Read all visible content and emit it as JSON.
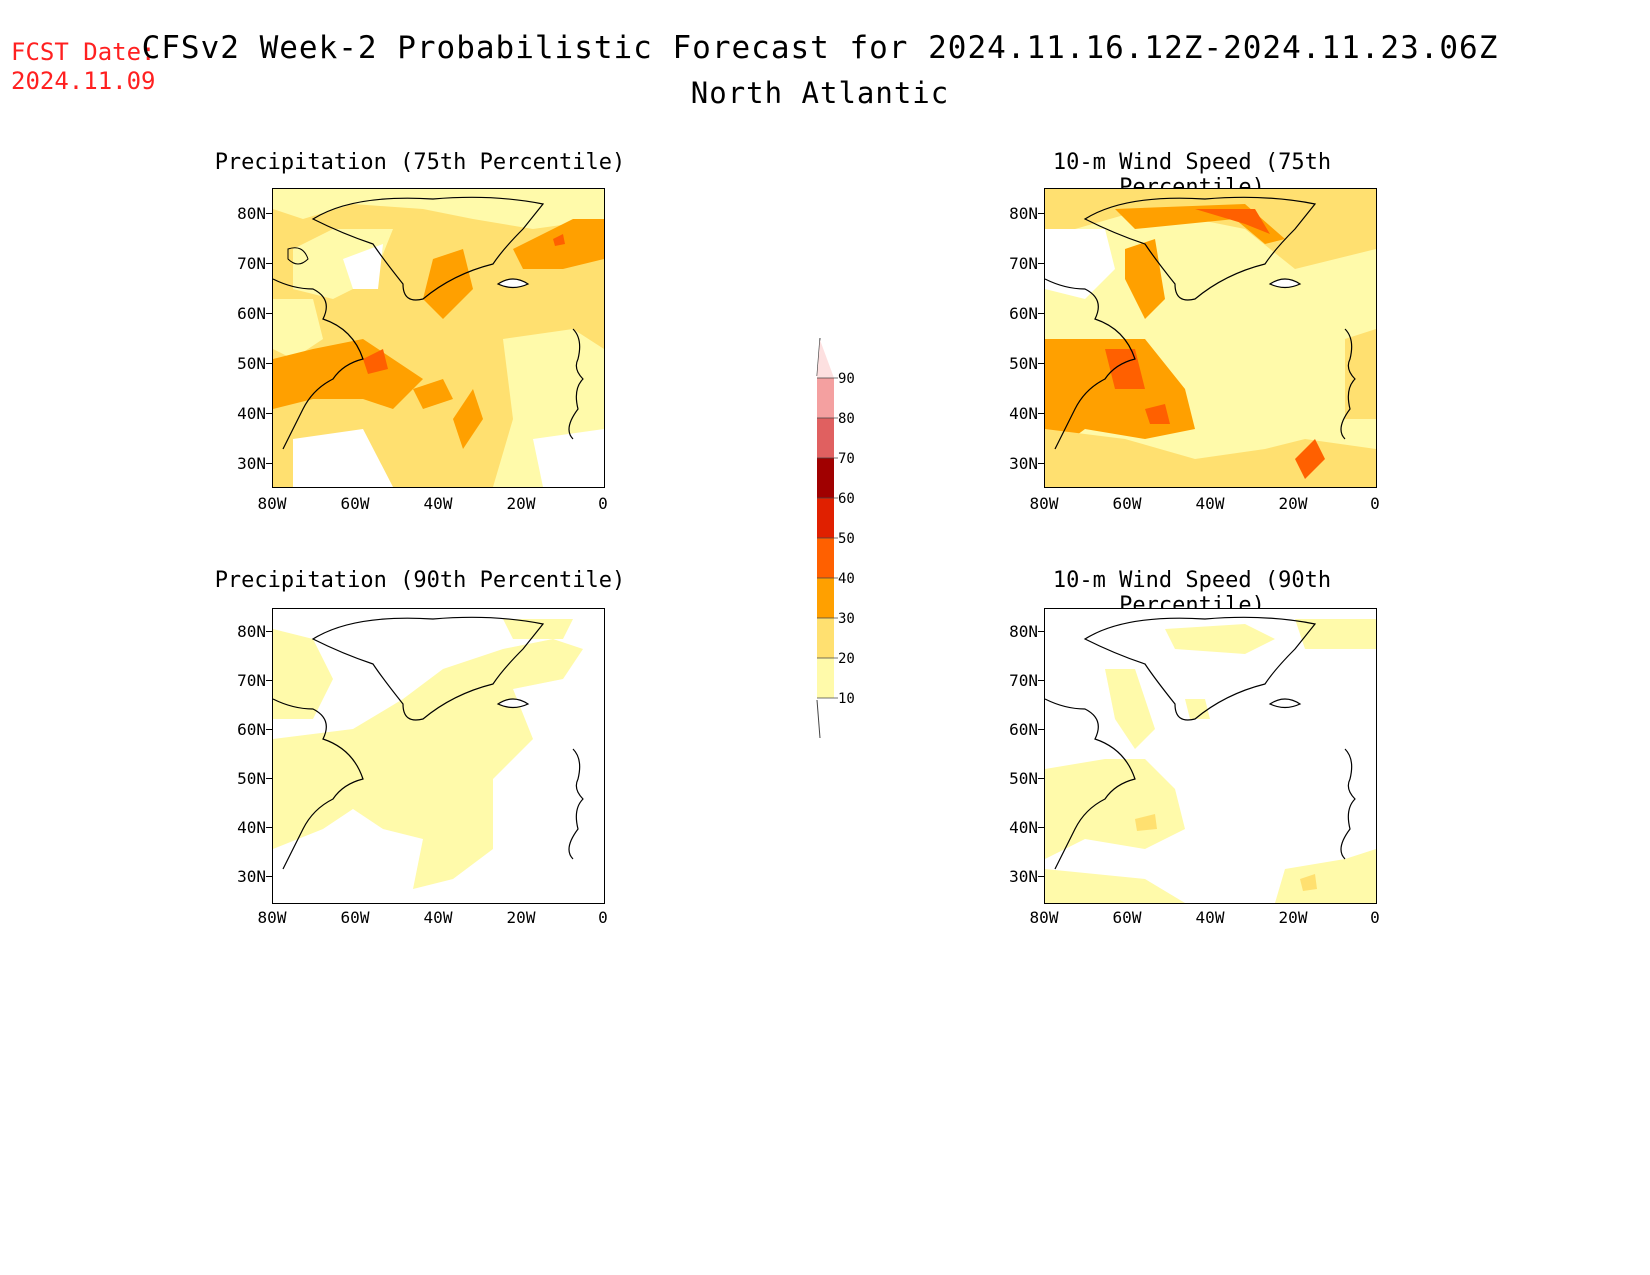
{
  "header": {
    "fcst_line1": "FCST Date:",
    "fcst_line2": "2024.11.09",
    "title": "CFSv2 Week-2 Probabilistic Forecast for 2024.11.16.12Z-2024.11.23.06Z",
    "subtitle": "North Atlantic"
  },
  "axes": {
    "lat_labels": [
      "80N",
      "70N",
      "60N",
      "50N",
      "40N",
      "30N"
    ],
    "lon_labels": [
      "80W",
      "60W",
      "40W",
      "20W",
      "0"
    ]
  },
  "panels": [
    {
      "title": "Precipitation (75th Percentile)",
      "id": "precip-75"
    },
    {
      "title": "10-m Wind Speed (75th Percentile)",
      "id": "wind-75"
    },
    {
      "title": "Precipitation (90th Percentile)",
      "id": "precip-90"
    },
    {
      "title": "10-m Wind Speed (90th Percentile)",
      "id": "wind-90"
    }
  ],
  "colorbar": {
    "labels": [
      "90",
      "80",
      "70",
      "60",
      "50",
      "40",
      "30",
      "20",
      "10"
    ],
    "colors": [
      "#fde0e0",
      "#f4a0a0",
      "#e06060",
      "#a00000",
      "#e02000",
      "#ff6000",
      "#ffa000",
      "#ffe070",
      "#fffaaa"
    ]
  }
}
